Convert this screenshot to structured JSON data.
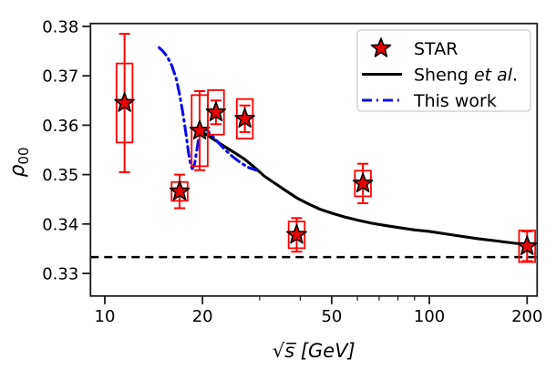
{
  "figure": {
    "background": "#ffffff"
  },
  "chart_data": {
    "type": "scatter",
    "title": "",
    "xlabel": "√s̅ [GeV]",
    "ylabel_base": "ρ",
    "ylabel_sub": "00",
    "x_scale": "log",
    "x_range": [
      9.04,
      215
    ],
    "y_range": [
      0.3254,
      0.3806
    ],
    "grid": false,
    "x_major_ticks": [
      {
        "value": 10,
        "label": "10"
      },
      {
        "value": 20,
        "label": "20"
      },
      {
        "value": 50,
        "label": "50"
      },
      {
        "value": 100,
        "label": "100"
      },
      {
        "value": 200,
        "label": "200"
      }
    ],
    "x_minor_ticks": [
      30,
      40,
      60,
      70,
      80,
      90
    ],
    "y_major_ticks": [
      {
        "value": 0.33,
        "label": "0.33"
      },
      {
        "value": 0.34,
        "label": "0.34"
      },
      {
        "value": 0.35,
        "label": "0.35"
      },
      {
        "value": 0.36,
        "label": "0.36"
      },
      {
        "value": 0.37,
        "label": "0.37"
      },
      {
        "value": 0.38,
        "label": "0.38"
      }
    ],
    "reference_line": {
      "value": 0.3333,
      "color": "#000000",
      "style": "dashed"
    },
    "series": [
      {
        "name": "STAR",
        "type": "scatter",
        "marker": "star",
        "marker_fill": "#e60000",
        "marker_edge": "#000000",
        "error_color": "#ff0000",
        "points": [
          {
            "x": 11.5,
            "y": 0.3645,
            "stat": 0.014,
            "sys": 0.008
          },
          {
            "x": 17,
            "y": 0.3466,
            "stat": 0.0034,
            "sys": 0.0019
          },
          {
            "x": 19.6,
            "y": 0.3589,
            "stat": 0.008,
            "sys": 0.0072
          },
          {
            "x": 22,
            "y": 0.3626,
            "stat": 0.0024,
            "sys": 0.0045
          },
          {
            "x": 27,
            "y": 0.3613,
            "stat": 0.0027,
            "sys": 0.004
          },
          {
            "x": 39,
            "y": 0.3378,
            "stat": 0.0034,
            "sys": 0.0027
          },
          {
            "x": 62.4,
            "y": 0.3482,
            "stat": 0.004,
            "sys": 0.0026
          },
          {
            "x": 200,
            "y": 0.3355,
            "stat": 0.003,
            "sys": 0.0032
          }
        ]
      },
      {
        "name": "Sheng et al.",
        "type": "line",
        "style": "solid",
        "color": "#000000",
        "points": [
          [
            19.5,
            0.3591
          ],
          [
            21,
            0.3577
          ],
          [
            23,
            0.356
          ],
          [
            25,
            0.3545
          ],
          [
            27,
            0.3531
          ],
          [
            29,
            0.3514
          ],
          [
            31,
            0.3497
          ],
          [
            33.5,
            0.3482
          ],
          [
            36,
            0.3468
          ],
          [
            39,
            0.3453
          ],
          [
            42,
            0.3442
          ],
          [
            46,
            0.343
          ],
          [
            50,
            0.3422
          ],
          [
            55,
            0.3414
          ],
          [
            60,
            0.3408
          ],
          [
            66,
            0.3402
          ],
          [
            73,
            0.3397
          ],
          [
            80,
            0.3393
          ],
          [
            90,
            0.3388
          ],
          [
            100,
            0.3385
          ],
          [
            112,
            0.338
          ],
          [
            126,
            0.3375
          ],
          [
            142,
            0.337
          ],
          [
            160,
            0.3366
          ],
          [
            178,
            0.3362
          ],
          [
            195,
            0.3359
          ],
          [
            200,
            0.3358
          ]
        ]
      },
      {
        "name": "This work",
        "type": "line",
        "style": "dashdot",
        "color": "#0d0de8",
        "points": [
          [
            14.7,
            0.3757
          ],
          [
            15.1,
            0.375
          ],
          [
            15.6,
            0.3738
          ],
          [
            16.1,
            0.372
          ],
          [
            16.6,
            0.3694
          ],
          [
            17.0,
            0.3662
          ],
          [
            17.4,
            0.3624
          ],
          [
            17.8,
            0.3581
          ],
          [
            18.1,
            0.3545
          ],
          [
            18.4,
            0.3519
          ],
          [
            18.6,
            0.3512
          ],
          [
            18.9,
            0.3521
          ],
          [
            19.2,
            0.3549
          ],
          [
            19.5,
            0.3577
          ],
          [
            19.8,
            0.359
          ],
          [
            20.2,
            0.3594
          ],
          [
            20.7,
            0.3589
          ],
          [
            21.4,
            0.3579
          ],
          [
            22.3,
            0.3566
          ],
          [
            23.4,
            0.3551
          ],
          [
            24.7,
            0.3537
          ],
          [
            26.2,
            0.3524
          ],
          [
            27.8,
            0.3514
          ],
          [
            29.3,
            0.3509
          ]
        ]
      }
    ],
    "legend": {
      "position": "top-right",
      "items": [
        {
          "marker": "star",
          "label": "STAR"
        },
        {
          "marker": "line-solid",
          "label_prefix": "Sheng ",
          "label_italic": "et al",
          "label_suffix": "."
        },
        {
          "marker": "line-dashdot",
          "label": "This work"
        }
      ]
    }
  }
}
